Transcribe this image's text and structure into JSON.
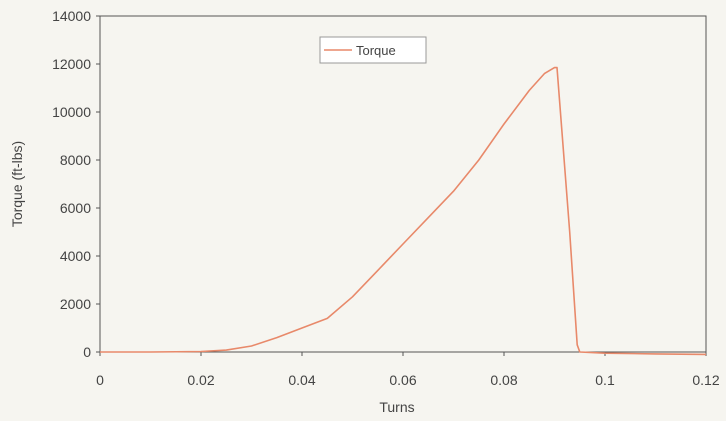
{
  "chart_data": {
    "type": "line",
    "title": "",
    "xlabel": "Turns",
    "ylabel": "Torque (ft-lbs)",
    "xlim": [
      0,
      0.12
    ],
    "ylim": [
      0,
      14000
    ],
    "xticks": [
      0,
      0.02,
      0.04,
      0.06,
      0.08,
      0.1,
      0.12
    ],
    "xtick_labels": [
      "0",
      "0.02",
      "0.04",
      "0.06",
      "0.08",
      "0.1",
      "0.12"
    ],
    "yticks": [
      0,
      2000,
      4000,
      6000,
      8000,
      10000,
      12000,
      14000
    ],
    "ytick_labels": [
      "0",
      "2000",
      "4000",
      "6000",
      "8000",
      "10000",
      "12000",
      "14000"
    ],
    "grid": false,
    "legend_position": "top-center",
    "series": [
      {
        "name": "Torque",
        "color": "#e8896a",
        "x": [
          0,
          0.01,
          0.02,
          0.025,
          0.03,
          0.035,
          0.04,
          0.045,
          0.05,
          0.055,
          0.06,
          0.065,
          0.07,
          0.075,
          0.08,
          0.085,
          0.088,
          0.09,
          0.0905,
          0.093,
          0.0945,
          0.095,
          0.1,
          0.11,
          0.12
        ],
        "y": [
          0,
          0,
          20,
          80,
          250,
          600,
          1000,
          1400,
          2300,
          3400,
          4500,
          5600,
          6700,
          8000,
          9500,
          10900,
          11600,
          11850,
          11850,
          5000,
          300,
          0,
          -50,
          -80,
          -100
        ]
      }
    ]
  }
}
